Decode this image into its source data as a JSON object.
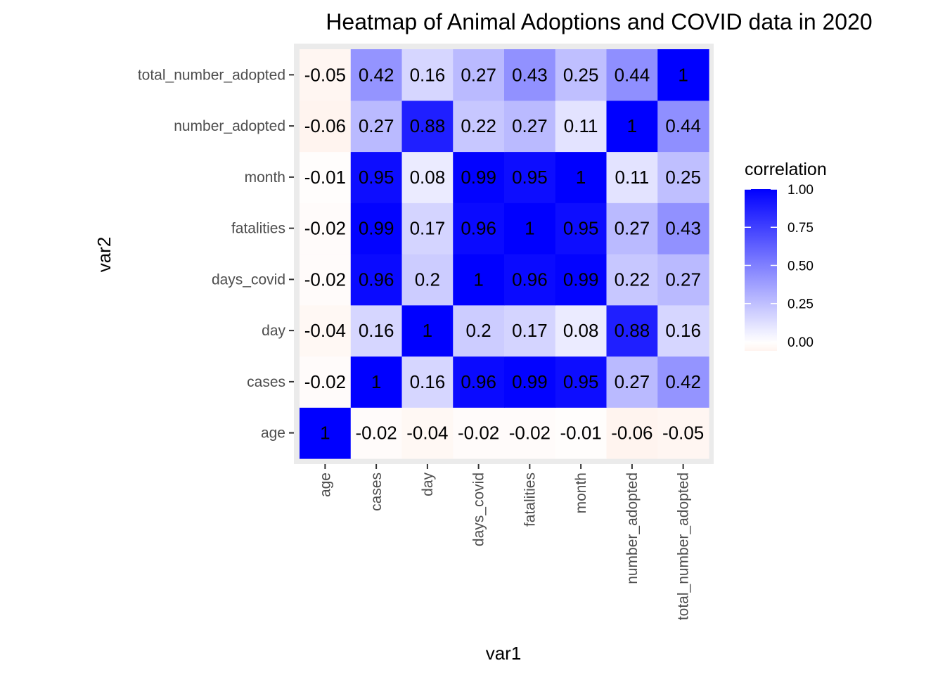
{
  "chart_data": {
    "type": "heatmap",
    "title": "Heatmap of Animal Adoptions and COVID data in 2020",
    "xlabel": "var1",
    "ylabel": "var2",
    "x_categories": [
      "age",
      "cases",
      "day",
      "days_covid",
      "fatalities",
      "month",
      "number_adopted",
      "total_number_adopted"
    ],
    "y_categories": [
      "age",
      "cases",
      "day",
      "days_covid",
      "fatalities",
      "month",
      "number_adopted",
      "total_number_adopted"
    ],
    "values": [
      [
        1,
        -0.02,
        -0.04,
        -0.02,
        -0.02,
        -0.01,
        -0.06,
        -0.05
      ],
      [
        -0.02,
        1,
        0.16,
        0.96,
        0.99,
        0.95,
        0.27,
        0.42
      ],
      [
        -0.04,
        0.16,
        1,
        0.2,
        0.17,
        0.08,
        0.88,
        0.16
      ],
      [
        -0.02,
        0.96,
        0.2,
        1,
        0.96,
        0.99,
        0.22,
        0.27
      ],
      [
        -0.02,
        0.99,
        0.17,
        0.96,
        1,
        0.95,
        0.27,
        0.43
      ],
      [
        -0.01,
        0.95,
        0.08,
        0.99,
        0.95,
        1,
        0.11,
        0.25
      ],
      [
        -0.06,
        0.27,
        0.88,
        0.22,
        0.27,
        0.11,
        1,
        0.44
      ],
      [
        -0.05,
        0.42,
        0.16,
        0.27,
        0.43,
        0.25,
        0.44,
        1
      ]
    ],
    "value_labels": [
      [
        "1",
        "-0.02",
        "-0.04",
        "-0.02",
        "-0.02",
        "-0.01",
        "-0.06",
        "-0.05"
      ],
      [
        "-0.02",
        "1",
        "0.16",
        "0.96",
        "0.99",
        "0.95",
        "0.27",
        "0.42"
      ],
      [
        "-0.04",
        "0.16",
        "1",
        "0.2",
        "0.17",
        "0.08",
        "0.88",
        "0.16"
      ],
      [
        "-0.02",
        "0.96",
        "0.2",
        "1",
        "0.96",
        "0.99",
        "0.22",
        "0.27"
      ],
      [
        "-0.02",
        "0.99",
        "0.17",
        "0.96",
        "1",
        "0.95",
        "0.27",
        "0.43"
      ],
      [
        "-0.01",
        "0.95",
        "0.08",
        "0.99",
        "0.95",
        "1",
        "0.11",
        "0.25"
      ],
      [
        "-0.06",
        "0.27",
        "0.88",
        "0.22",
        "0.27",
        "0.11",
        "1",
        "0.44"
      ],
      [
        "-0.05",
        "0.42",
        "0.16",
        "0.27",
        "0.43",
        "0.25",
        "0.44",
        "1"
      ]
    ],
    "color_scale": {
      "low_color": "#fff4ef",
      "mid_color": "#ffffff",
      "high_color": "#0000ff",
      "low_value": -0.06,
      "mid_value": 0,
      "high_value": 1
    },
    "legend": {
      "title": "correlation",
      "placement": "right",
      "ticks": [
        1.0,
        0.75,
        0.5,
        0.25,
        0.0
      ],
      "tick_labels": [
        "1.00",
        "0.75",
        "0.50",
        "0.25",
        "0.00"
      ]
    },
    "panel_background": "#ebebeb",
    "grid": true
  }
}
